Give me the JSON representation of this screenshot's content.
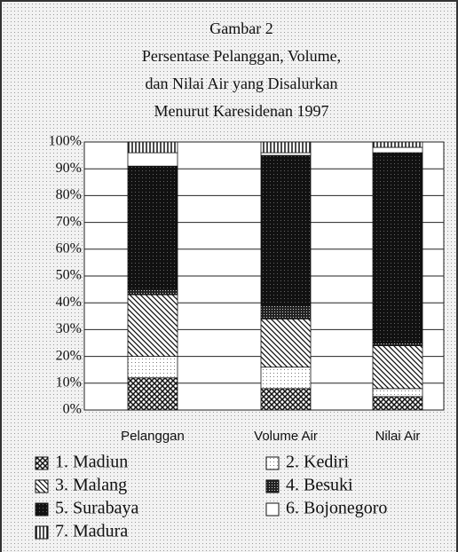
{
  "chart_data": {
    "type": "stacked_bar",
    "title": [
      "Gambar 2",
      "Persentase Pelanggan, Volume,",
      "dan Nilai Air yang Disalurkan",
      "Menurut Karesidenan 1997"
    ],
    "categories": [
      "Pelanggan",
      "Volume Air",
      "Nilai Air"
    ],
    "series": [
      {
        "name": "1. Madiun",
        "color": "#222",
        "pattern": "cross",
        "values": [
          12,
          8,
          5
        ]
      },
      {
        "name": "2. Kediri",
        "color": "#ddd",
        "pattern": "light",
        "values": [
          8,
          8,
          3
        ]
      },
      {
        "name": "3. Malang",
        "color": "#222",
        "pattern": "diagonal",
        "values": [
          23,
          18,
          16
        ]
      },
      {
        "name": "4. Besuki",
        "color": "#333",
        "pattern": "dense",
        "values": [
          2,
          5,
          1
        ]
      },
      {
        "name": "5. Surabaya",
        "color": "#111",
        "pattern": "dark",
        "values": [
          46,
          56,
          71
        ]
      },
      {
        "name": "6. Bojonegoro",
        "color": "#fff",
        "pattern": "blank",
        "values": [
          5,
          1,
          2
        ]
      },
      {
        "name": "7. Madura",
        "color": "#222",
        "pattern": "vertical",
        "values": [
          4,
          4,
          2
        ]
      }
    ],
    "ylim": [
      0,
      100
    ],
    "yticks": [
      {
        "value": 0,
        "label": "0%"
      },
      {
        "value": 10,
        "label": "10%"
      },
      {
        "value": 20,
        "label": "20%"
      },
      {
        "value": 30,
        "label": "30%"
      },
      {
        "value": 40,
        "label": "40%"
      },
      {
        "value": 50,
        "label": "50%"
      },
      {
        "value": 60,
        "label": "60%"
      },
      {
        "value": 70,
        "label": "70%"
      },
      {
        "value": 80,
        "label": "80%"
      },
      {
        "value": 90,
        "label": "90%"
      },
      {
        "value": 100,
        "label": "100%"
      }
    ],
    "grid": true
  }
}
